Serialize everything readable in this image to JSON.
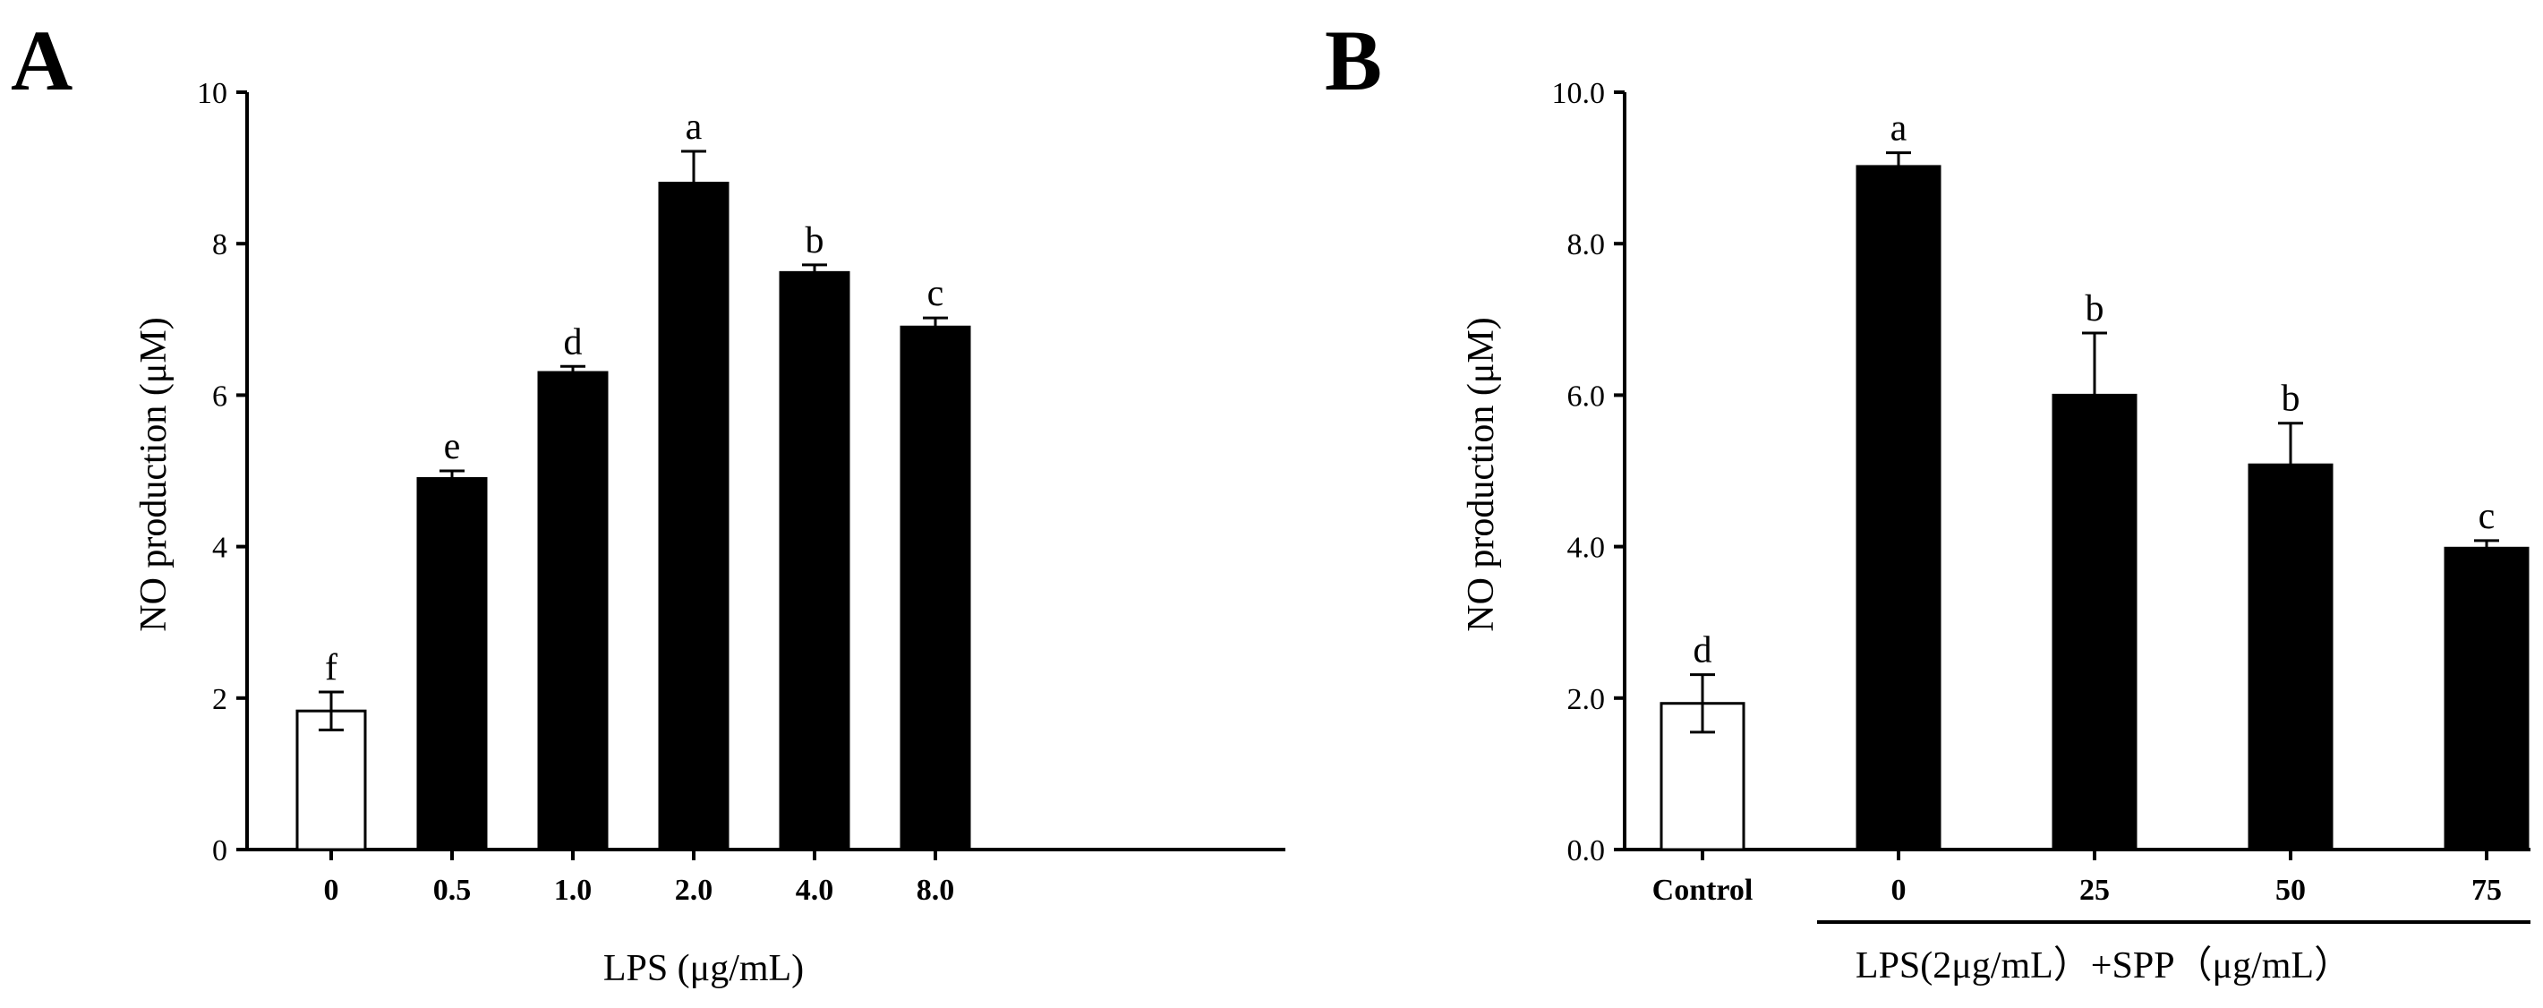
{
  "chart_data": [
    {
      "panel": "A",
      "type": "bar",
      "categories": [
        "0",
        "0.5",
        "1.0",
        "2.0",
        "4.0",
        "8.0"
      ],
      "values": [
        1.83,
        4.9,
        6.3,
        8.8,
        7.62,
        6.9
      ],
      "errors": [
        0.25,
        0.1,
        0.08,
        0.42,
        0.1,
        0.12
      ],
      "letters": [
        "f",
        "e",
        "d",
        "a",
        "b",
        "c"
      ],
      "fills": [
        "#ffffff",
        "#000000",
        "#000000",
        "#000000",
        "#000000",
        "#000000"
      ],
      "yticks": [
        "0",
        "2",
        "4",
        "6",
        "8",
        "10"
      ],
      "ylim": [
        0,
        10
      ],
      "xlabel": "LPS (μg/mL)",
      "ylabel": "NO production (μM)"
    },
    {
      "panel": "B",
      "type": "bar",
      "categories": [
        "Control",
        "0",
        "25",
        "50",
        "75"
      ],
      "values": [
        1.93,
        9.02,
        6.0,
        5.08,
        3.98
      ],
      "errors": [
        0.38,
        0.18,
        0.82,
        0.55,
        0.1
      ],
      "letters": [
        "d",
        "a",
        "b",
        "b",
        "c"
      ],
      "fills": [
        "#ffffff",
        "#000000",
        "#000000",
        "#000000",
        "#000000"
      ],
      "yticks": [
        "0.0",
        "2.0",
        "4.0",
        "6.0",
        "8.0",
        "10.0"
      ],
      "ylim": [
        0,
        10
      ],
      "xlabel": "LPS(2μg/mL）+SPP（μg/mL）",
      "ylabel": "NO production (μM)"
    }
  ]
}
